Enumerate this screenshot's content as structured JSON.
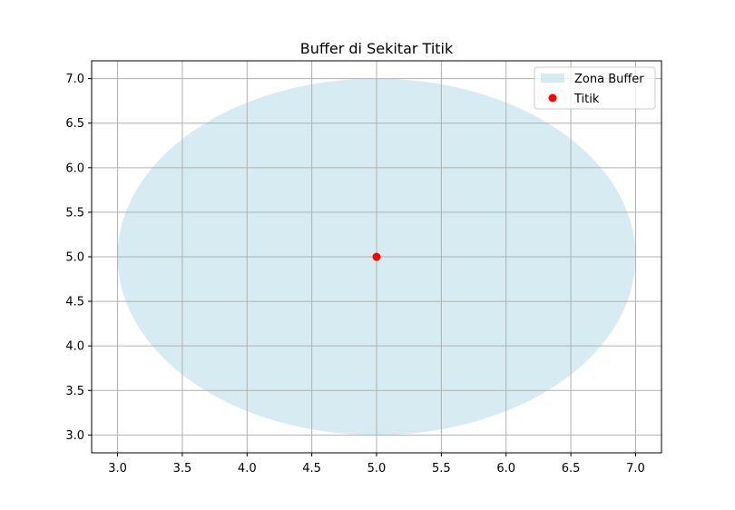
{
  "chart_data": {
    "type": "scatter",
    "title": "Buffer di Sekitar Titik",
    "xlabel": "",
    "ylabel": "",
    "xlim": [
      2.8,
      7.2
    ],
    "ylim": [
      2.8,
      7.2
    ],
    "x_ticks": [
      3.0,
      3.5,
      4.0,
      4.5,
      5.0,
      5.5,
      6.0,
      6.5,
      7.0
    ],
    "y_ticks": [
      3.0,
      3.5,
      4.0,
      4.5,
      5.0,
      5.5,
      6.0,
      6.5,
      7.0
    ],
    "x_tick_labels": [
      "3.0",
      "3.5",
      "4.0",
      "4.5",
      "5.0",
      "5.5",
      "6.0",
      "6.5",
      "7.0"
    ],
    "y_tick_labels": [
      "3.0",
      "3.5",
      "4.0",
      "4.5",
      "5.0",
      "5.5",
      "6.0",
      "6.5",
      "7.0"
    ],
    "grid": true,
    "legend_position": "top-right",
    "series": [
      {
        "name": "Zona Buffer",
        "kind": "circle-buffer",
        "center": [
          5.0,
          5.0
        ],
        "radius": 2.0,
        "color": "#add8e6",
        "alpha": 0.5
      },
      {
        "name": "Titik",
        "kind": "point",
        "x": [
          5.0
        ],
        "y": [
          5.0
        ],
        "color": "#ff0000"
      }
    ]
  }
}
